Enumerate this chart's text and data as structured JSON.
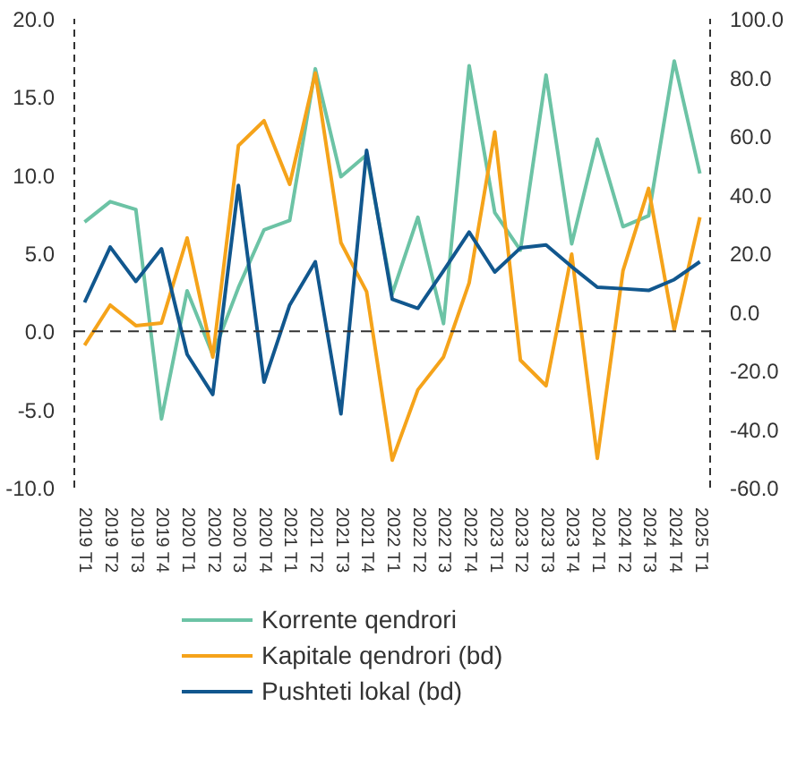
{
  "chart_data": {
    "type": "line",
    "categories": [
      "2019 T1",
      "2019 T2",
      "2019 T3",
      "2019 T4",
      "2020 T1",
      "2020 T2",
      "2020 T3",
      "2020 T4",
      "2021 T1",
      "2021 T2",
      "2021 T3",
      "2021 T4",
      "2022 T1",
      "2022 T2",
      "2022 T3",
      "2022 T4",
      "2023 T1",
      "2023 T2",
      "2023 T3",
      "2023 T4",
      "2024 T1",
      "2024 T2",
      "2024 T3",
      "2024 T4",
      "2025 T1"
    ],
    "series": [
      {
        "name": "Korrente qendrori",
        "color": "#6cc3a5",
        "values": [
          7.0,
          8.3,
          7.8,
          -5.6,
          2.6,
          -1.5,
          2.8,
          6.5,
          7.1,
          16.8,
          9.9,
          11.3,
          2.4,
          7.3,
          0.5,
          17.0,
          7.6,
          5.2,
          16.4,
          5.6,
          12.3,
          6.7,
          7.4,
          17.3,
          10.1
        ]
      },
      {
        "name": "Kapitale qendrori (bd)",
        "color": "#f5a31a",
        "axis": "y2",
        "values": [
          -11.4,
          2.3,
          -4.7,
          -3.8,
          25.2,
          -15.4,
          56.7,
          65.2,
          43.5,
          81.5,
          23.6,
          6.9,
          -50.6,
          -26.6,
          -15.4,
          9.9,
          61.4,
          -16.5,
          -25.2,
          19.7,
          -50,
          14.0,
          42.1,
          -6.3,
          32.3
        ]
      },
      {
        "name": "Pushteti lokal (bd)",
        "color": "#11578e",
        "axis": "y2",
        "values": [
          3.2,
          22.1,
          10.4,
          21.5,
          -14.5,
          -28.2,
          43.1,
          -24.0,
          2.3,
          17.1,
          -34.8,
          55.1,
          4.3,
          1.2,
          14.0,
          27.2,
          13.6,
          21.8,
          22.8,
          15.4,
          8.4,
          7.9,
          7.3,
          11.0,
          17.1
        ]
      }
    ],
    "ylim": [
      -10,
      20
    ],
    "yticks": [
      {
        "value": -10,
        "label": "-10.0"
      },
      {
        "value": -5,
        "label": "-5.0"
      },
      {
        "value": 0,
        "label": "0.0"
      },
      {
        "value": 5,
        "label": "5.0"
      },
      {
        "value": 10,
        "label": "10.0"
      },
      {
        "value": 15,
        "label": "15.0"
      },
      {
        "value": 20,
        "label": "20.0"
      }
    ],
    "y2lim": [
      -60,
      100
    ],
    "y2ticks": [
      {
        "value": -60,
        "label": "-60.0"
      },
      {
        "value": -40,
        "label": "-40.0"
      },
      {
        "value": -20,
        "label": "-20.0"
      },
      {
        "value": 0,
        "label": "0.0"
      },
      {
        "value": 20,
        "label": "20.0"
      },
      {
        "value": 40,
        "label": "40.0"
      },
      {
        "value": 60,
        "label": "60.0"
      },
      {
        "value": 80,
        "label": "80.0"
      },
      {
        "value": 100,
        "label": "100.0"
      }
    ],
    "ref_lines": [
      {
        "axis": "y",
        "value": 0,
        "line_style": "dashed",
        "color": "#333333"
      }
    ],
    "grid": false,
    "legend": "bottom",
    "line_style": "solid",
    "marker": "none"
  }
}
